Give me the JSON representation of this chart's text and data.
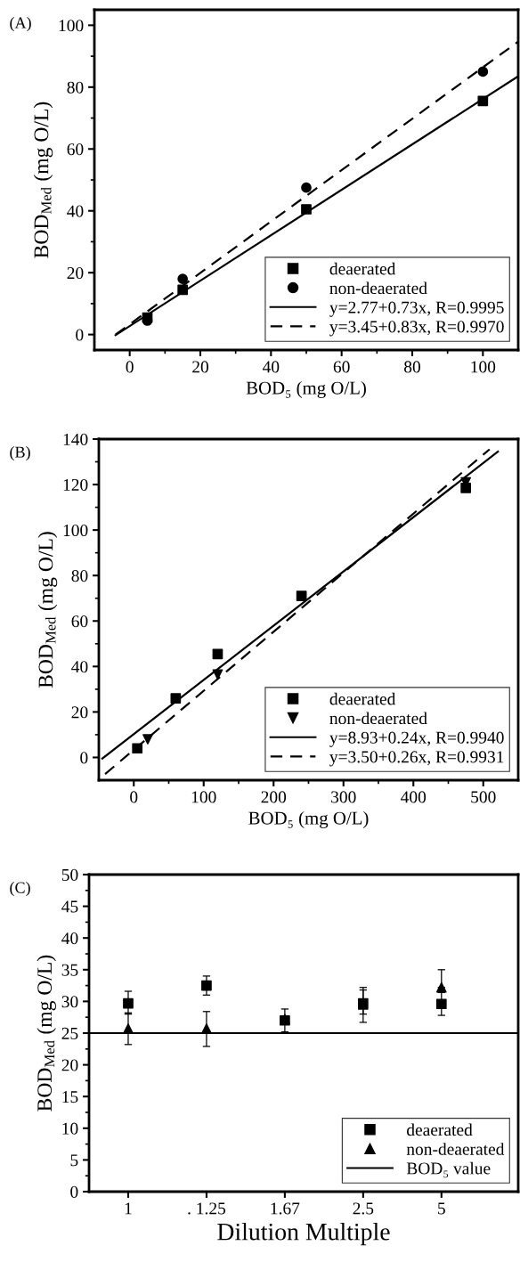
{
  "chart_data": [
    {
      "type": "scatter",
      "title": "(A)",
      "xlabel": "BOD₅ (mg O/L)",
      "ylabel": "BOD$_{Med}$ (mg O/L)",
      "xlim": [
        -10,
        110
      ],
      "ylim": [
        -5,
        105
      ],
      "xticks": [
        0,
        {
          "value": 10,
          "label": null
        },
        20,
        {
          "value": 30,
          "label": null
        },
        40,
        {
          "value": 50,
          "label": null
        },
        60,
        {
          "value": 70,
          "label": null
        },
        80,
        {
          "value": 90,
          "label": null
        },
        100
      ],
      "yticks": [
        0,
        {
          "value": 10,
          "label": null
        },
        20,
        {
          "value": 30,
          "label": null
        },
        40,
        {
          "value": 50,
          "label": null
        },
        60,
        {
          "value": 70,
          "label": null
        },
        80,
        {
          "value": 90,
          "label": null
        },
        100
      ],
      "grid": false,
      "legend": "bottom right",
      "series": [
        {
          "name": "deaerated",
          "color": "#000000",
          "marker": "square",
          "x": [
            5,
            15,
            50,
            100
          ],
          "values": [
            5.5,
            14.5,
            40.5,
            75.5
          ]
        },
        {
          "name": "non-deaerated",
          "color": "#000000",
          "marker": "circle",
          "x": [
            5,
            15,
            50,
            100
          ],
          "values": [
            4.5,
            18,
            47.5,
            85
          ]
        },
        {
          "name": "y=2.77+0.73x, R=0.9995",
          "type": "line",
          "color": "#000000",
          "marker": "none",
          "line_style": "solid",
          "x": [
            -4,
            110
          ],
          "values": [
            -0.2,
            83.5
          ]
        },
        {
          "name": "y=3.45+0.83x, R=0.9970",
          "type": "line",
          "color": "#000000",
          "marker": "none",
          "line_style": "dashed",
          "x": [
            -4,
            110
          ],
          "values": [
            0,
            94.7
          ]
        }
      ]
    },
    {
      "type": "scatter",
      "title": "(B)",
      "xlabel": "BOD₅ (mg O/L)",
      "ylabel": "BOD$_{Med}$ (mg O/L)",
      "xlim": [
        -50,
        550
      ],
      "ylim": [
        -10,
        140
      ],
      "xticks": [
        0,
        {
          "value": 50,
          "label": null
        },
        100,
        {
          "value": 150,
          "label": null
        },
        200,
        {
          "value": 250,
          "label": null
        },
        300,
        {
          "value": 350,
          "label": null
        },
        400,
        {
          "value": 450,
          "label": null
        },
        500
      ],
      "yticks": [
        0,
        {
          "value": 10,
          "label": null
        },
        20,
        {
          "value": 30,
          "label": null
        },
        40,
        {
          "value": 50,
          "label": null
        },
        60,
        {
          "value": 70,
          "label": null
        },
        80,
        {
          "value": 90,
          "label": null
        },
        100,
        {
          "value": 110,
          "label": null
        },
        120,
        {
          "value": 130,
          "label": null
        },
        140
      ],
      "grid": false,
      "legend": "bottom right",
      "series": [
        {
          "name": "deaerated",
          "color": "#000000",
          "marker": "square",
          "x": [
            5,
            60,
            120,
            240,
            475
          ],
          "values": [
            4,
            26,
            45.5,
            71,
            118.5
          ]
        },
        {
          "name": "non-deaerated",
          "color": "#000000",
          "marker": "triangle_down",
          "x": [
            20,
            120,
            475
          ],
          "values": [
            8,
            36.5,
            121
          ]
        },
        {
          "name": "y=8.93+0.24x, R=0.9940",
          "type": "line",
          "color": "#000000",
          "marker": "none",
          "line_style": "solid",
          "x": [
            -45,
            521
          ],
          "values": [
            -0.5,
            134.5
          ]
        },
        {
          "name": "y=3.50+0.26x, R=0.9931",
          "type": "line",
          "color": "#000000",
          "marker": "none",
          "line_style": "dashed",
          "x": [
            -41,
            509
          ],
          "values": [
            -7.3,
            135.5
          ]
        }
      ]
    },
    {
      "type": "scatter",
      "title": "(C)",
      "xlabel": "Dilution Multiple",
      "ylabel": "BOD$_{Med}$ (mg O/L)",
      "categories": [
        "1",
        ". 1.25",
        "1.67",
        "2.5",
        "5"
      ],
      "ylim": [
        0,
        50
      ],
      "yticks": [
        0,
        {
          "value": 2.5,
          "label": null
        },
        5,
        {
          "value": 7.5,
          "label": null
        },
        10,
        {
          "value": 12.5,
          "label": null
        },
        15,
        {
          "value": 17.5,
          "label": null
        },
        20,
        {
          "value": 22.5,
          "label": null
        },
        25,
        {
          "value": 27.5,
          "label": null
        },
        30,
        {
          "value": 32.5,
          "label": null
        },
        35,
        {
          "value": 37.5,
          "label": null
        },
        40,
        {
          "value": 42.5,
          "label": null
        },
        45,
        {
          "value": 47.5,
          "label": null
        },
        50
      ],
      "grid": false,
      "legend": "bottom right",
      "series": [
        {
          "name": "deaerated",
          "color": "#000000",
          "marker": "square",
          "values": [
            29.7,
            32.5,
            27,
            29.7,
            29.6
          ],
          "errors": [
            [
              28,
              31.6
            ],
            [
              31,
              34
            ],
            [
              25.2,
              28.8
            ],
            [
              28,
              32.2
            ],
            [
              27.8,
              31.4
            ]
          ]
        },
        {
          "name": "non-deaerated",
          "color": "#000000",
          "marker": "triangle",
          "values": [
            25.7,
            25.7,
            27.2,
            29.5,
            32.2
          ],
          "errors": [
            [
              23.2,
              28.2
            ],
            [
              22.9,
              28.4
            ],
            null,
            [
              26.7,
              31.8
            ],
            [
              32.2,
              35
            ]
          ]
        }
      ],
      "ref_lines": [
        {
          "axis": "y",
          "value": 25,
          "label": "BOD₅ value",
          "color": "#000000",
          "line_style": "solid"
        }
      ]
    }
  ]
}
